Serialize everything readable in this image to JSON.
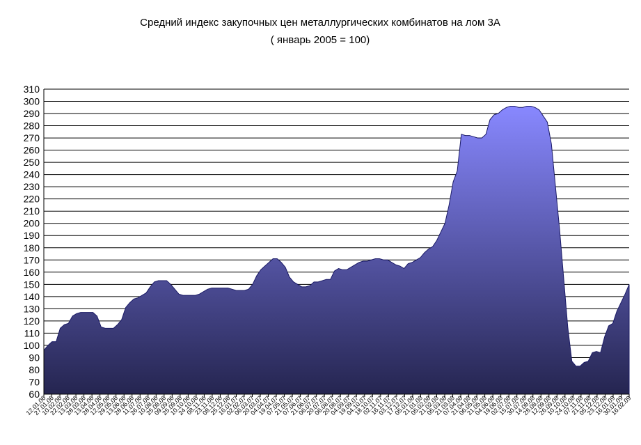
{
  "chart_data": {
    "type": "area",
    "title": "Средний индекс закупочных цен металлургических комбинатов на лом 3А",
    "subtitle": "( январь 2005 = 100)",
    "xlabel": "",
    "ylabel": "",
    "ylim": [
      60,
      310
    ],
    "ytick_step": 10,
    "grid": true,
    "legend": "none",
    "area_color_top": "#8888ff",
    "area_color_bottom": "#252550",
    "x_tick_labels": [
      "12.01.06",
      "27.01.06",
      "10.02.06",
      "22.02.06",
      "13.03.06",
      "28.03.06",
      "13.04.06",
      "28.04.06",
      "12.05.06",
      "29.05.06",
      "13.06.06",
      "28.06.06",
      "11.07.06",
      "26.07.06",
      "10.08.06",
      "25.08.06",
      "09.09.06",
      "25.09.06",
      "10.10.06",
      "24.10.06",
      "08.11.06",
      "23.11.06",
      "08.12.06",
      "25.12.06",
      "16.01.07",
      "02.02.07",
      "06.03.07",
      "20.03.07",
      "04.04.07",
      "19.04.07",
      "07.05.07",
      "21.05.07",
      "07.06.07",
      "21.06.07",
      "06.07.07",
      "20.07.07",
      "06.08.07",
      "20.08.07",
      "04.09.07",
      "19.09.07",
      "04.10.07",
      "18.10.07",
      "02.11.07",
      "16.11.07",
      "03.12.07",
      "17.12.07",
      "05.01.08",
      "21.01.08",
      "05.02.08",
      "21.02.08",
      "05.03.08",
      "21.03.08",
      "07.04.08",
      "21.04.08",
      "06.05.08",
      "21.05.08",
      "04.06.08",
      "19.06.08",
      "02.07.08",
      "15.07.08",
      "30.07.08",
      "14.08.08",
      "28.08.08",
      "12.09.08",
      "26.09.08",
      "10.10.08",
      "24.10.08",
      "07.11.08",
      "21.11.08",
      "05.12.08",
      "23.12.08",
      "16.01.09",
      "30.01.09",
      "16.02.09"
    ],
    "values": [
      96,
      100,
      103,
      103,
      114,
      117,
      118,
      124,
      126,
      127,
      127,
      127,
      127,
      124,
      115,
      114,
      114,
      114,
      117,
      121,
      131,
      135,
      138,
      139,
      141,
      143,
      148,
      152,
      153,
      153,
      153,
      150,
      146,
      142,
      141,
      141,
      141,
      141,
      142,
      144,
      146,
      147,
      147,
      147,
      147,
      147,
      146,
      145,
      145,
      145,
      146,
      150,
      157,
      162,
      165,
      168,
      171,
      171,
      168,
      164,
      156,
      152,
      150,
      148,
      148,
      149,
      152,
      152,
      153,
      154,
      154,
      161,
      163,
      162,
      162,
      164,
      166,
      168,
      169,
      169,
      170,
      171,
      171,
      170,
      170,
      168,
      166,
      165,
      163,
      167,
      168,
      170,
      172,
      176,
      179,
      181,
      186,
      193,
      200,
      215,
      234,
      243,
      273,
      272,
      272,
      271,
      270,
      270,
      273,
      285,
      289,
      290,
      293,
      295,
      296,
      296,
      295,
      295,
      296,
      296,
      295,
      293,
      288,
      283,
      265,
      230,
      195,
      155,
      115,
      87,
      83,
      83,
      86,
      87,
      94,
      95,
      94,
      107,
      116,
      118,
      128,
      135,
      142,
      150
    ]
  }
}
